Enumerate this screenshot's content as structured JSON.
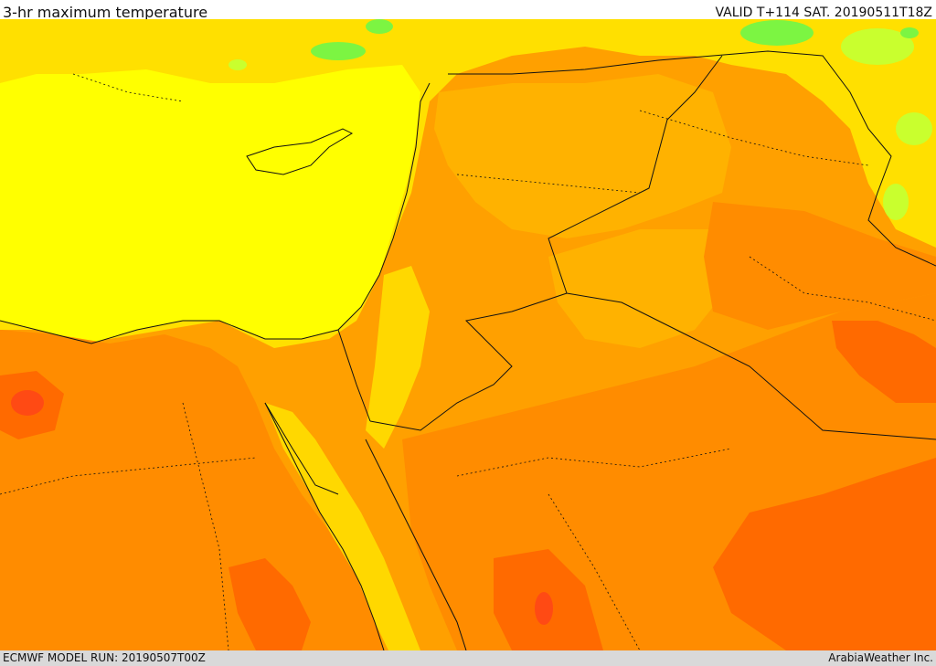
{
  "header": {
    "title": "3-hr maximum temperature",
    "valid": "VALID T+114 SAT. 20190511T18Z"
  },
  "footer": {
    "model_run": "ECMWF MODEL RUN: 20190507T00Z",
    "credit": "ArabiaWeather Inc."
  },
  "colors": {
    "yellow": "#ffff00",
    "light_yellow_orange": "#ffd800",
    "light_orange": "#ffb200",
    "orange": "#ff8c00",
    "dark_orange": "#ff6a00",
    "red_orange": "#ff4a14",
    "green": "#7cf542",
    "light_green": "#c9ff2e",
    "boundary": "#111111"
  }
}
